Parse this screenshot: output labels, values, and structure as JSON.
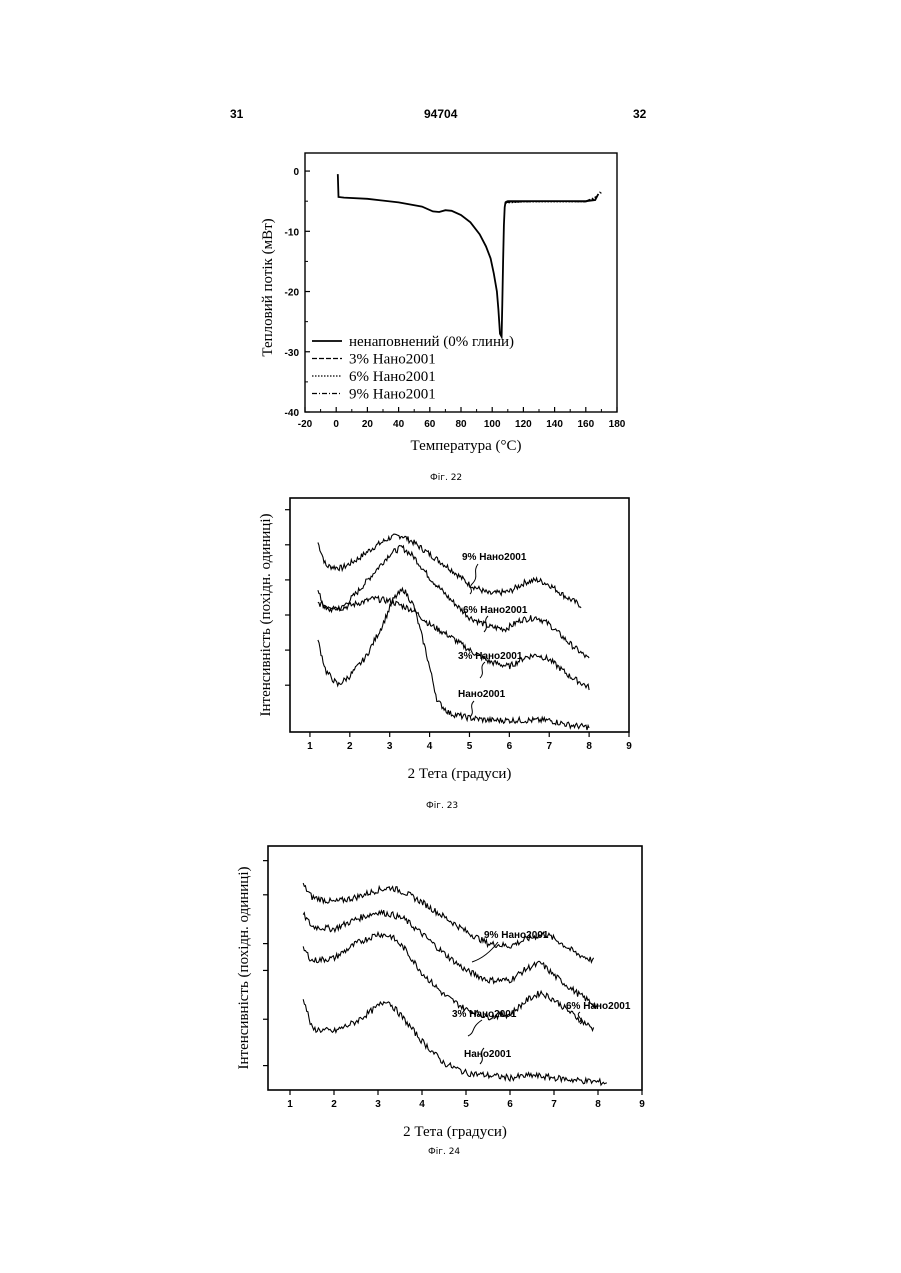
{
  "header": {
    "left_page": "31",
    "patent_number": "94704",
    "right_page": "32"
  },
  "figures": [
    {
      "caption": "Фіг. 22"
    },
    {
      "caption": "Фіг. 23"
    },
    {
      "caption": "Фіг. 24"
    }
  ],
  "chart_data": [
    {
      "type": "line",
      "title": "",
      "xlabel": "Температура (°C)",
      "ylabel": "Тепловий потік (мВт)",
      "xlim": [
        -20,
        180
      ],
      "ylim": [
        -40,
        3
      ],
      "x_ticks": [
        "-20",
        "0",
        "20",
        "40",
        "60",
        "80",
        "100",
        "120",
        "140",
        "160",
        "180"
      ],
      "y_ticks": [
        "0",
        "-10",
        "-20",
        "-30",
        "-40"
      ],
      "legend_position": "bottom-left",
      "series": [
        {
          "name": "ненаповнений (0% глини)",
          "style": "solid",
          "x": [
            1,
            1.5,
            5,
            20,
            40,
            55,
            62,
            66,
            70,
            74,
            80,
            86,
            92,
            96,
            99,
            101,
            103,
            104,
            105,
            106,
            106.5,
            107,
            107.5,
            108,
            108.5,
            109,
            110,
            112,
            120,
            140,
            160,
            166,
            168
          ],
          "y": [
            -0.5,
            -4.3,
            -4.4,
            -4.6,
            -5.2,
            -5.9,
            -6.7,
            -6.8,
            -6.5,
            -6.6,
            -7.3,
            -8.5,
            -10.5,
            -12.5,
            -14.5,
            -17,
            -20,
            -23,
            -27,
            -27.5,
            -22,
            -15,
            -9,
            -6,
            -5.2,
            -5.1,
            -5,
            -5,
            -5,
            -5,
            -5,
            -4.8,
            -3.8
          ]
        },
        {
          "name": "3% Нано2001",
          "style": "dashed",
          "x": [
            108.5,
            120,
            140,
            160,
            166,
            169,
            170
          ],
          "y": [
            -5.2,
            -5,
            -5,
            -5.1,
            -4.6,
            -3.5,
            -3.7
          ]
        },
        {
          "name": "6% Нано2001",
          "style": "dotted",
          "x": [
            108.5,
            120,
            140,
            160,
            167
          ],
          "y": [
            -5.3,
            -5.1,
            -5.1,
            -5.1,
            -4.3
          ]
        },
        {
          "name": "9% Нано2001",
          "style": "dash-dot",
          "x": [
            108.5,
            120,
            140,
            160,
            167
          ],
          "y": [
            -5.2,
            -5.1,
            -5,
            -5,
            -4.2
          ]
        }
      ]
    },
    {
      "type": "line",
      "title": "",
      "xlabel": "2 Тета (градуси)",
      "ylabel": "Інтенсивність (похідн. одиниці)",
      "xlim": [
        0.5,
        9
      ],
      "ylim": [
        0,
        100
      ],
      "x_ticks": [
        "1",
        "2",
        "3",
        "4",
        "5",
        "6",
        "7",
        "8",
        "9"
      ],
      "series": [
        {
          "name": "9% Нано2001",
          "x": [
            1.2,
            1.4,
            1.8,
            2.2,
            2.6,
            3.0,
            3.3,
            3.6,
            4.0,
            4.5,
            5.0,
            5.5,
            6.0,
            6.4,
            6.7,
            7.0,
            7.4,
            7.8
          ],
          "y": [
            81,
            71,
            70,
            74,
            79,
            83,
            84,
            81,
            76,
            70,
            63,
            59,
            60,
            64,
            65,
            63,
            58,
            54
          ]
        },
        {
          "name": "6% Нано2001",
          "x": [
            1.2,
            1.4,
            1.8,
            2.2,
            2.6,
            3.0,
            3.3,
            3.6,
            4.0,
            4.5,
            5.0,
            5.5,
            5.9,
            6.3,
            6.7,
            7.0,
            7.5,
            8.0
          ],
          "y": [
            60,
            52,
            53,
            60,
            68,
            76,
            79,
            75,
            66,
            57,
            49,
            45,
            44,
            48,
            49,
            46,
            38,
            31
          ]
        },
        {
          "name": "3% Нано2001",
          "x": [
            1.2,
            1.4,
            1.8,
            2.2,
            2.6,
            3.0,
            3.3,
            3.6,
            4.0,
            4.5,
            5.0,
            5.5,
            6.0,
            6.4,
            6.7,
            7.0,
            7.5,
            8.0
          ],
          "y": [
            55,
            54,
            53,
            55,
            57,
            56,
            54,
            52,
            46,
            41,
            35,
            30,
            28,
            32,
            33,
            31,
            24,
            19
          ]
        },
        {
          "name": "Нано2001",
          "x": [
            1.2,
            1.4,
            1.7,
            2.0,
            2.4,
            2.8,
            3.1,
            3.35,
            3.6,
            3.9,
            4.2,
            4.5,
            5.0,
            5.5,
            6.0,
            6.5,
            7.0,
            7.5,
            8.0
          ],
          "y": [
            39,
            26,
            20,
            24,
            32,
            45,
            57,
            61,
            54,
            35,
            13,
            8,
            6,
            5,
            5,
            5,
            5,
            3,
            2
          ]
        }
      ]
    },
    {
      "type": "line",
      "title": "",
      "xlabel": "2 Тета (градуси)",
      "ylabel": "Інтенсивність (похідн. одиниці)",
      "xlim": [
        0.5,
        9
      ],
      "ylim": [
        0,
        100
      ],
      "x_ticks": [
        "1",
        "2",
        "3",
        "4",
        "5",
        "6",
        "7",
        "8",
        "9"
      ],
      "series": [
        {
          "name": "9% Нано2001",
          "x": [
            1.3,
            1.5,
            2.0,
            2.5,
            3.0,
            3.3,
            3.6,
            4.0,
            4.5,
            5.0,
            5.5,
            6.0,
            6.4,
            6.8,
            7.1,
            7.5,
            7.9
          ],
          "y": [
            84,
            79,
            77,
            79,
            82,
            83,
            81,
            77,
            71,
            65,
            60,
            59,
            62,
            64,
            61,
            56,
            53
          ]
        },
        {
          "name": "6% Нано2001",
          "x": [
            1.3,
            1.5,
            2.0,
            2.5,
            3.0,
            3.3,
            3.6,
            4.0,
            4.5,
            5.0,
            5.5,
            6.0,
            6.4,
            6.7,
            7.0,
            7.5,
            8.0
          ],
          "y": [
            72,
            67,
            66,
            70,
            73,
            72,
            70,
            64,
            56,
            49,
            45,
            45,
            50,
            52,
            47,
            40,
            34
          ]
        },
        {
          "name": "3% Нано2001",
          "x": [
            1.3,
            1.5,
            2.0,
            2.5,
            3.0,
            3.3,
            3.6,
            4.0,
            4.5,
            5.0,
            5.5,
            6.0,
            6.4,
            6.7,
            7.0,
            7.5,
            7.9
          ],
          "y": [
            58,
            53,
            54,
            60,
            64,
            63,
            58,
            48,
            39,
            33,
            30,
            31,
            37,
            40,
            37,
            30,
            25
          ]
        },
        {
          "name": "Нано2001",
          "x": [
            1.3,
            1.5,
            2.0,
            2.5,
            2.9,
            3.2,
            3.5,
            4.0,
            4.5,
            5.0,
            5.5,
            6.0,
            6.5,
            7.0,
            7.5,
            8.2
          ],
          "y": [
            38,
            25,
            24,
            28,
            33,
            37,
            31,
            20,
            11,
            7,
            6,
            5,
            6,
            5,
            4,
            3
          ]
        }
      ]
    }
  ]
}
